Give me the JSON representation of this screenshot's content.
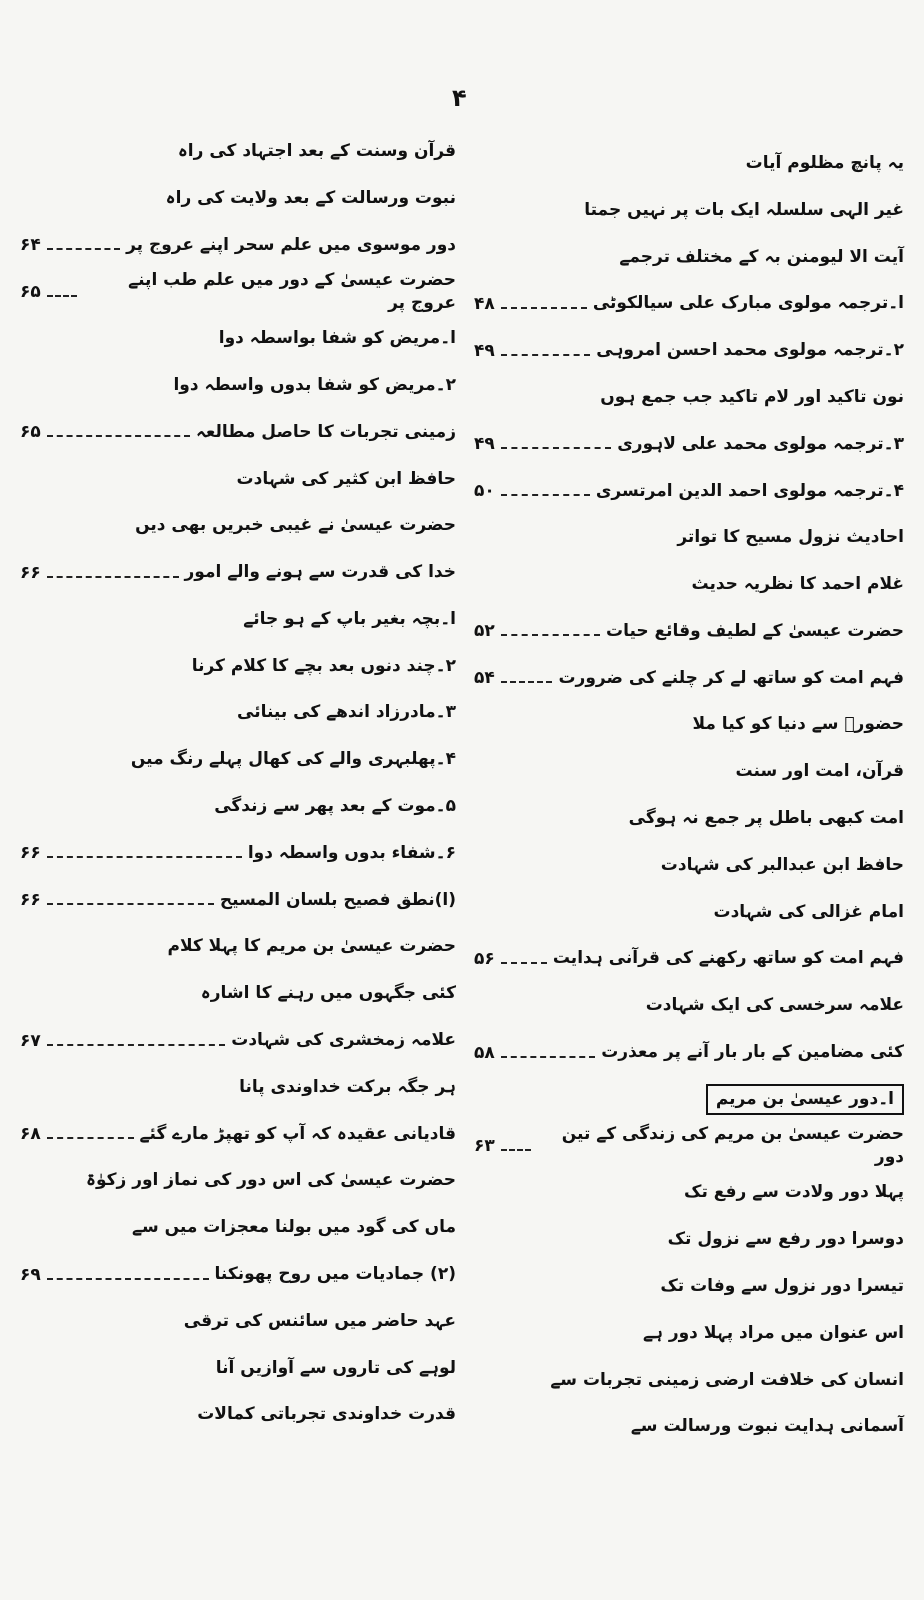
{
  "page_number": "۴",
  "right_column": [
    {
      "title": "یہ پانچ مظلوم آیات",
      "page": ""
    },
    {
      "title": "غیر الہی سلسلہ ایک بات پر نہیں جمتا",
      "page": ""
    },
    {
      "title": "آیت الا لیومنن بہ کے مختلف ترجمے",
      "page": ""
    },
    {
      "title": "ا۔ترجمہ مولوی مبارک علی سیالکوٹی",
      "page": "۴۸"
    },
    {
      "title": "۲۔ترجمہ مولوی محمد احسن امروہی",
      "page": "۴۹"
    },
    {
      "title": "نون تاکید اور لام تاکید جب جمع ہوں",
      "page": ""
    },
    {
      "title": "۳۔ترجمہ مولوی محمد علی لاہوری",
      "page": "۴۹"
    },
    {
      "title": "۴۔ترجمہ مولوی احمد الدین امرتسری",
      "page": "۵۰"
    },
    {
      "title": "احادیث نزول مسیح کا تواتر",
      "page": ""
    },
    {
      "title": "غلام احمد کا نظریہ حدیث",
      "page": ""
    },
    {
      "title": "حضرت عیسیٰ کے لطیف وقائع حیات",
      "page": "۵۲"
    },
    {
      "title": "فہم امت کو ساتھ لے کر چلنے کی ضرورت",
      "page": "۵۴"
    },
    {
      "title": "حضورؐ سے دنیا کو کیا ملا",
      "page": ""
    },
    {
      "title": "قرآن، امت اور سنت",
      "page": ""
    },
    {
      "title": "امت کبھی باطل پر جمع نہ ہوگی",
      "page": ""
    },
    {
      "title": "حافظ ابن عبدالبر کی شہادت",
      "page": ""
    },
    {
      "title": "امام غزالی کی شہادت",
      "page": ""
    },
    {
      "title": "فہم امت کو ساتھ رکھنے کی قرآنی ہدایت",
      "page": "۵۶"
    },
    {
      "title": "علامہ سرخسی کی ایک شہادت",
      "page": ""
    },
    {
      "title": "کئی مضامین کے بار بار آنے پر معذرت",
      "page": "۵۸"
    },
    {
      "title": "ا۔دور عیسیٰ بن مریم",
      "page": "",
      "boxed": true
    },
    {
      "title": "حضرت عیسیٰ بن مریم کی زندگی کے تین دور",
      "page": "۶۳"
    },
    {
      "title": "پہلا دور ولادت سے رفع تک",
      "page": ""
    },
    {
      "title": "دوسرا دور رفع سے نزول تک",
      "page": ""
    },
    {
      "title": "تیسرا دور نزول سے وفات تک",
      "page": ""
    },
    {
      "title": "اس عنوان میں مراد پہلا دور ہے",
      "page": ""
    },
    {
      "title": "انسان کی خلافت ارضی زمینی تجربات سے",
      "page": ""
    },
    {
      "title": "آسمانی ہدایت نبوت ورسالت سے",
      "page": ""
    }
  ],
  "left_column": [
    {
      "title": "قرآن وسنت کے بعد اجتہاد کی راہ",
      "page": ""
    },
    {
      "title": "نبوت ورسالت کے بعد ولایت کی راہ",
      "page": ""
    },
    {
      "title": "دور موسوی میں علم سحر اپنے عروج پر",
      "page": "۶۴"
    },
    {
      "title": "حضرت عیسیٰ کے دور میں علم طب اپنے عروج پر",
      "page": "۶۵"
    },
    {
      "title": "ا۔مریض کو شفا بواسطہ دوا",
      "page": ""
    },
    {
      "title": "۲۔مریض کو شفا بدوں واسطہ دوا",
      "page": ""
    },
    {
      "title": "زمینی تجربات کا حاصل مطالعہ",
      "page": "۶۵"
    },
    {
      "title": "حافظ ابن کثیر کی شہادت",
      "page": ""
    },
    {
      "title": "حضرت عیسیٰ نے غیبی خبریں بھی دیں",
      "page": ""
    },
    {
      "title": "خدا کی قدرت سے ہونے والے امور",
      "page": "۶۶"
    },
    {
      "title": "ا۔بچہ بغیر باپ کے ہو جائے",
      "page": ""
    },
    {
      "title": "۲۔چند دنوں بعد بچے کا کلام کرنا",
      "page": ""
    },
    {
      "title": "۳۔مادرزاد اندھے کی بینائی",
      "page": ""
    },
    {
      "title": "۴۔پھلبہری والے کی کھال پہلے رنگ میں",
      "page": ""
    },
    {
      "title": "۵۔موت کے بعد پھر سے زندگی",
      "page": ""
    },
    {
      "title": "۶۔شفاء بدوں واسطہ دوا",
      "page": "۶۶"
    },
    {
      "title": "(ا)نطق فصیح بلسان المسیح",
      "page": "۶۶"
    },
    {
      "title": "حضرت عیسیٰ بن مریم کا پہلا کلام",
      "page": ""
    },
    {
      "title": "کئی جگہوں میں رہنے کا اشارہ",
      "page": ""
    },
    {
      "title": "علامہ زمخشری کی شہادت",
      "page": "۶۷"
    },
    {
      "title": "ہر جگہ برکت خداوندی پانا",
      "page": ""
    },
    {
      "title": "قادیانی عقیدہ کہ آپ کو تھپڑ مارے گئے",
      "page": "۶۸"
    },
    {
      "title": "حضرت عیسیٰ کی اس دور کی نماز اور زکوٰۃ",
      "page": ""
    },
    {
      "title": "ماں کی گود میں بولنا معجزات میں سے",
      "page": ""
    },
    {
      "title": "(۲) جمادیات میں روح پھونکنا",
      "page": "۶۹"
    },
    {
      "title": "عہد حاضر میں سائنس کی ترقی",
      "page": ""
    },
    {
      "title": "لوہے کی تاروں سے آوازیں آنا",
      "page": ""
    },
    {
      "title": "قدرت خداوندی تجرباتی کمالات",
      "page": ""
    }
  ]
}
